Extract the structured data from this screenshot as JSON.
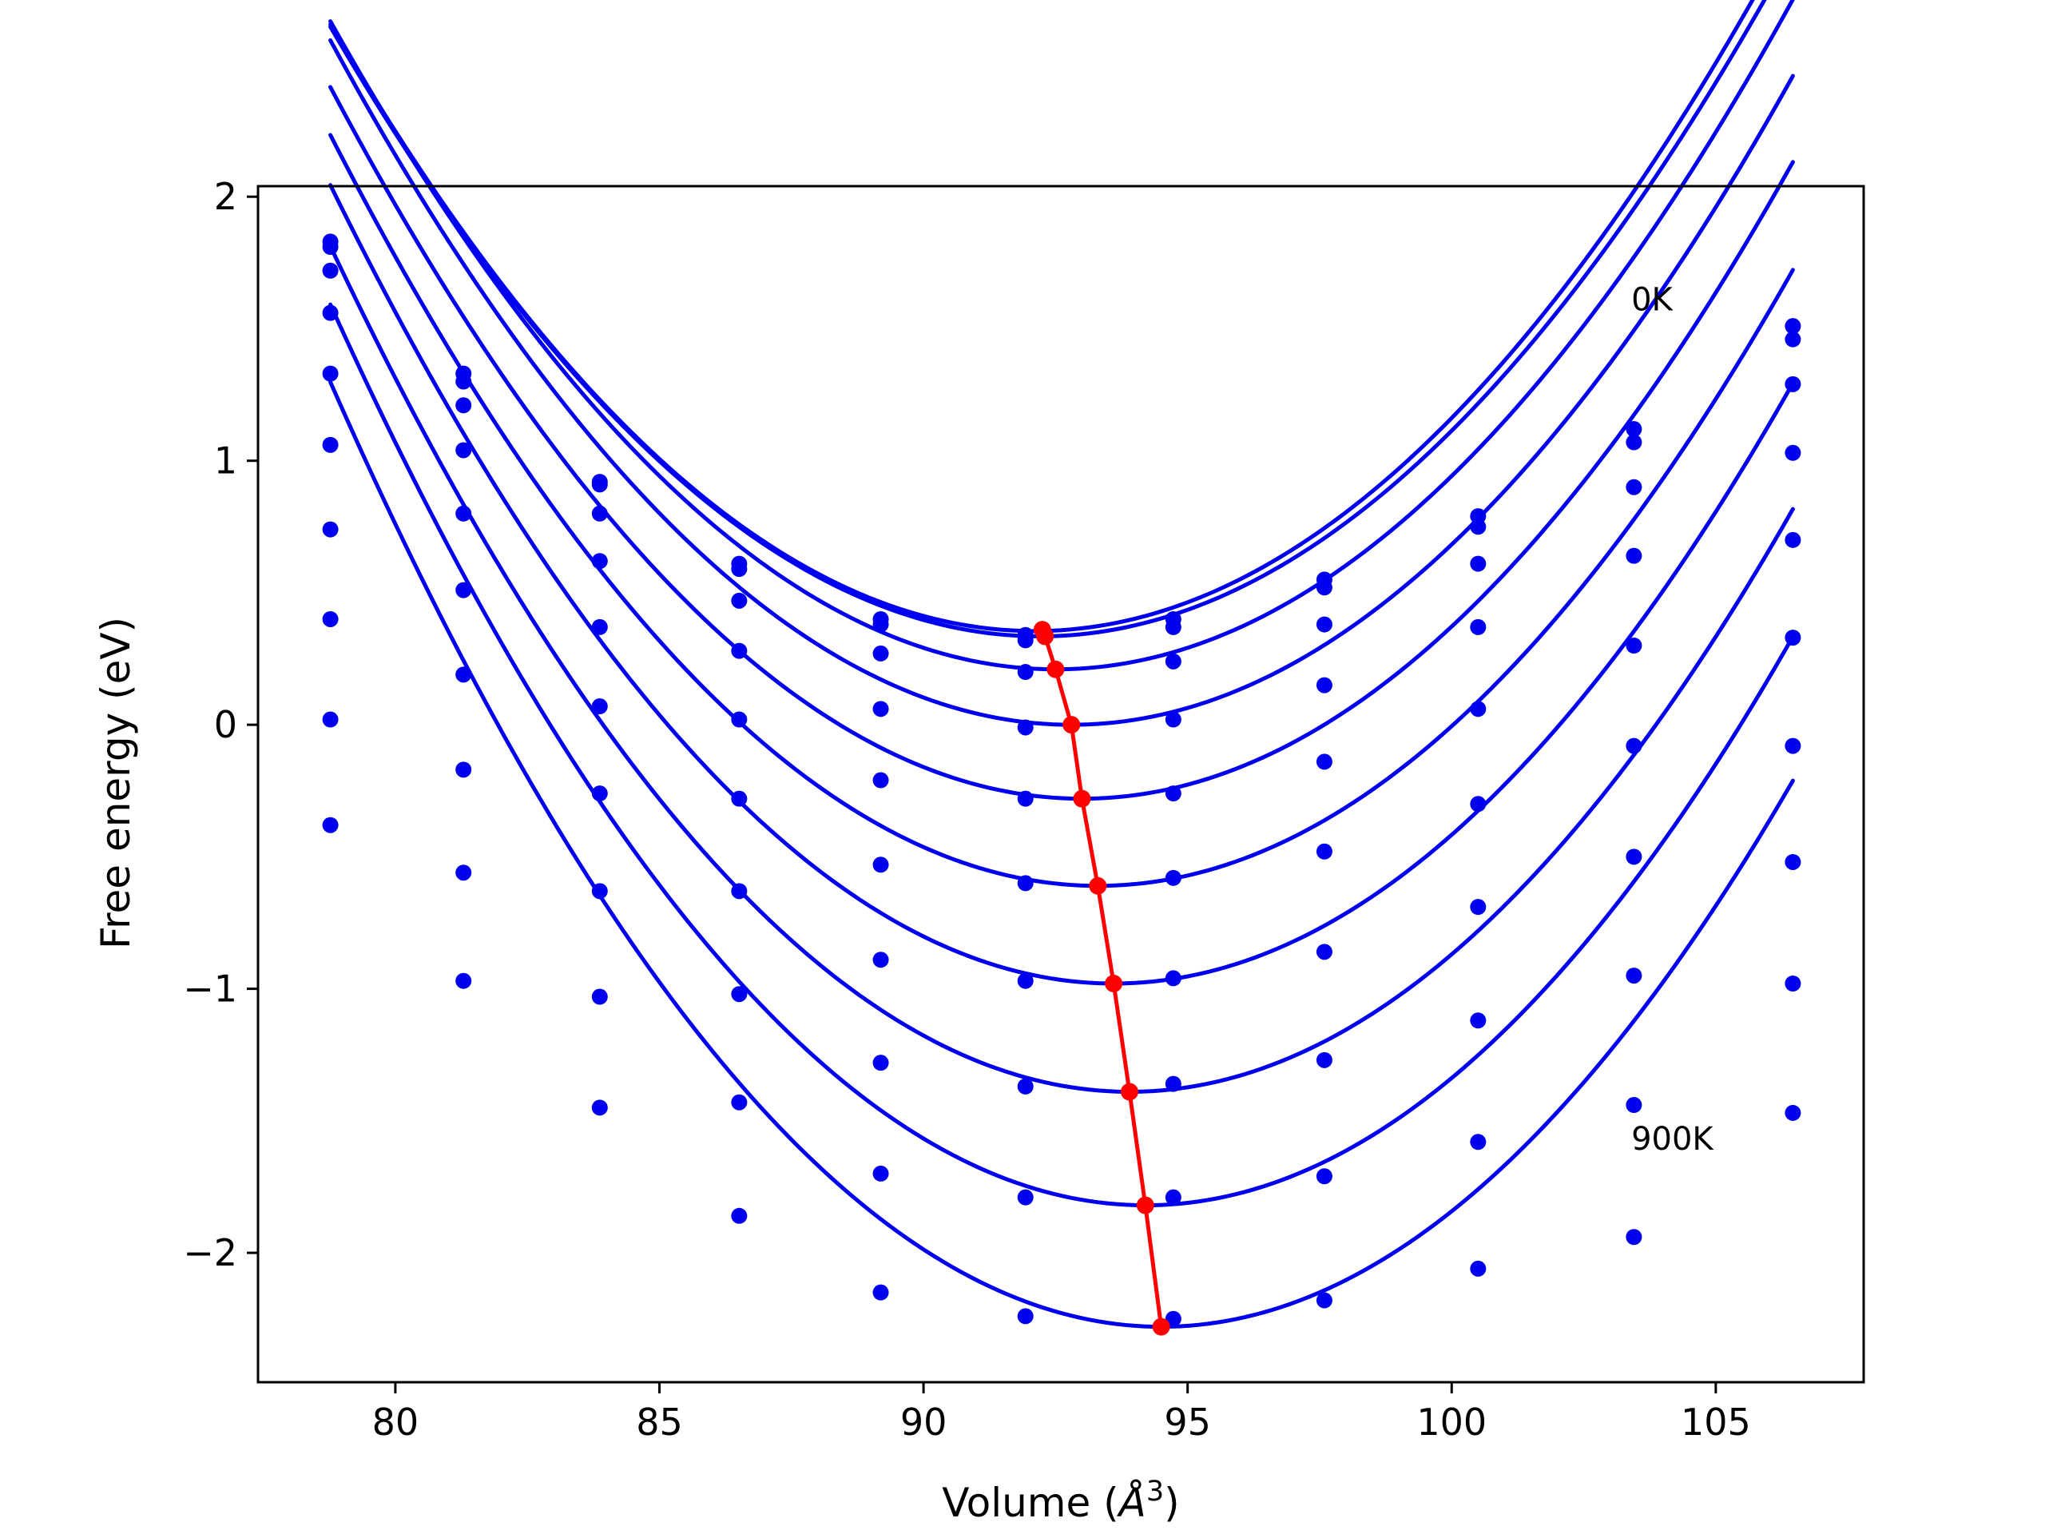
{
  "chart_data": {
    "type": "scatter",
    "xlabel_main": "Volume (",
    "xlabel_italic": "Å",
    "xlabel_sup": "3",
    "xlabel_close": ")",
    "ylabel": "Free energy (eV)",
    "xlim": [
      77.4,
      107.8
    ],
    "ylim": [
      -2.49,
      2.04
    ],
    "xticks": [
      {
        "value": 80,
        "label": "80"
      },
      {
        "value": 85,
        "label": "85"
      },
      {
        "value": 90,
        "label": "90"
      },
      {
        "value": 95,
        "label": "95"
      },
      {
        "value": 100,
        "label": "100"
      },
      {
        "value": 105,
        "label": "105"
      }
    ],
    "yticks": [
      {
        "value": 2,
        "label": "2"
      },
      {
        "value": 1,
        "label": "1"
      },
      {
        "value": 0,
        "label": "0"
      },
      {
        "value": -1,
        "label": "−1"
      },
      {
        "value": -2,
        "label": "−2"
      }
    ],
    "grid": false,
    "annotations": [
      {
        "text": "0K",
        "x": 103.4,
        "y": 1.57
      },
      {
        "text": "900K",
        "x": 103.4,
        "y": -1.61
      }
    ],
    "x": [
      78.77,
      81.29,
      83.87,
      86.51,
      89.19,
      91.93,
      94.73,
      97.59,
      100.5,
      103.45,
      106.46
    ],
    "colors": {
      "series": "#0000ee",
      "minima": "#ff0000"
    },
    "series": [
      {
        "values": [
          1.83,
          1.33,
          0.92,
          0.61,
          0.4,
          0.34,
          0.4,
          0.55,
          0.79,
          1.12,
          1.51
        ],
        "fit": {
          "a": 0.01293,
          "v0": 92.1,
          "e0": 0.355
        }
      },
      {
        "values": [
          1.81,
          1.3,
          0.91,
          0.59,
          0.38,
          0.32,
          0.37,
          0.52,
          0.75,
          1.07,
          1.46
        ],
        "fit": {
          "a": 0.0128,
          "v0": 92.2,
          "e0": 0.335
        }
      },
      {
        "values": [
          1.72,
          1.21,
          0.8,
          0.47,
          0.27,
          0.2,
          0.24,
          0.38,
          0.61,
          0.9,
          1.29
        ],
        "fit": {
          "a": 0.01302,
          "v0": 92.5,
          "e0": 0.21
        }
      },
      {
        "values": [
          1.56,
          1.04,
          0.62,
          0.28,
          0.06,
          -0.01,
          0.02,
          0.15,
          0.37,
          0.64,
          1.03
        ],
        "fit": {
          "a": 0.01317,
          "v0": 92.8,
          "e0": 0.0
        }
      },
      {
        "values": [
          1.33,
          0.8,
          0.37,
          0.02,
          -0.21,
          -0.28,
          -0.26,
          -0.14,
          0.06,
          0.3,
          0.7
        ],
        "fit": {
          "a": 0.01331,
          "v0": 93.0,
          "e0": -0.28
        }
      },
      {
        "values": [
          1.06,
          0.51,
          0.07,
          -0.28,
          -0.53,
          -0.6,
          -0.58,
          -0.48,
          -0.3,
          -0.08,
          0.33
        ],
        "fit": {
          "a": 0.01347,
          "v0": 93.3,
          "e0": -0.61
        }
      },
      {
        "values": [
          0.74,
          0.19,
          -0.26,
          -0.63,
          -0.89,
          -0.97,
          -0.96,
          -0.86,
          -0.69,
          -0.5,
          -0.08
        ],
        "fit": {
          "a": 0.01375,
          "v0": 93.6,
          "e0": -0.98
        }
      },
      {
        "values": [
          0.4,
          -0.17,
          -0.63,
          -1.02,
          -1.28,
          -1.37,
          -1.36,
          -1.27,
          -1.12,
          -0.95,
          -0.52
        ],
        "fit": {
          "a": 0.01399,
          "v0": 93.9,
          "e0": -1.39
        }
      },
      {
        "values": [
          0.02,
          -0.56,
          -1.03,
          -1.43,
          -1.7,
          -1.79,
          -1.79,
          -1.71,
          -1.58,
          -1.44,
          -0.98
        ],
        "fit": {
          "a": 0.01433,
          "v0": 94.2,
          "e0": -1.82
        }
      },
      {
        "values": [
          -0.38,
          -0.97,
          -1.45,
          -1.86,
          -2.15,
          -2.24,
          -2.25,
          -2.18,
          -2.06,
          -1.94,
          -1.47
        ],
        "fit": {
          "a": 0.01446,
          "v0": 94.5,
          "e0": -2.28
        }
      }
    ],
    "minima": {
      "x": [
        92.25,
        92.3,
        92.5,
        92.8,
        93.0,
        93.3,
        93.6,
        93.9,
        94.2,
        94.5
      ],
      "y": [
        0.36,
        0.335,
        0.21,
        0.0,
        -0.28,
        -0.61,
        -0.98,
        -1.39,
        -1.82,
        -2.28
      ]
    }
  }
}
